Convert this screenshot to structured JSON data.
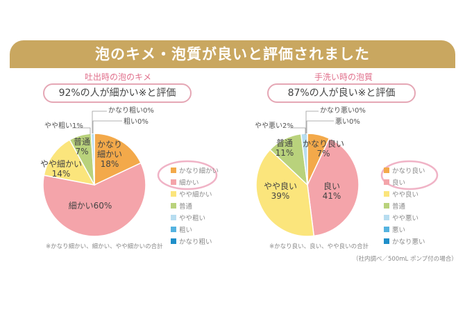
{
  "banner": {
    "title": "泡のキメ・泡質が良いと評価されました"
  },
  "colors": {
    "very_good": "#f3a94a",
    "good": "#f4a4aa",
    "somewhat_good": "#fbe57c",
    "neutral": "#b9d27c",
    "somewhat_bad": "#b7ddf0",
    "bad": "#55b3e0",
    "very_bad": "#1f8fc9"
  },
  "chart_data": [
    {
      "type": "pie",
      "title": "吐出時の泡のキメ",
      "summary": "92%の人が細かい※と評価",
      "categories": [
        "かなり細かい",
        "細かい",
        "やや細かい",
        "普通",
        "やや粗い",
        "粗い",
        "かなり粗い"
      ],
      "values": [
        18,
        60,
        14,
        7,
        1,
        0,
        0
      ],
      "slice_labels": [
        "かなり\n細かい\n18%",
        "細かい60%",
        "やや細かい\n14%",
        "普通\n7%",
        "やや粗い1%",
        "粗い0%",
        "かなり粗い0%"
      ],
      "legend": [
        "かなり細かい",
        "細かい",
        "やや細かい",
        "普通",
        "やや粗い",
        "粗い",
        "かなり粗い"
      ],
      "footnote": "※かなり細かい、細かい、やや細かいの合計"
    },
    {
      "type": "pie",
      "title": "手洗い時の泡質",
      "summary": "87%の人が良い※と評価",
      "categories": [
        "かなり良い",
        "良い",
        "やや良い",
        "普通",
        "やや悪い",
        "悪い",
        "かなり悪い"
      ],
      "values": [
        7,
        41,
        39,
        11,
        2,
        0,
        0
      ],
      "slice_labels": [
        "かなり良い\n7%",
        "良い\n41%",
        "やや良い\n39%",
        "普通\n11%",
        "やや悪い2%",
        "悪い0%",
        "かなり悪い0%"
      ],
      "legend": [
        "かなり良い",
        "良い",
        "やや良い",
        "普通",
        "やや悪い",
        "悪い",
        "かなり悪い"
      ],
      "footnote": "※かなり良い、良い、やや良いの合計"
    }
  ],
  "source_note": "（社内調べ／500mL ポンプ付の場合）"
}
